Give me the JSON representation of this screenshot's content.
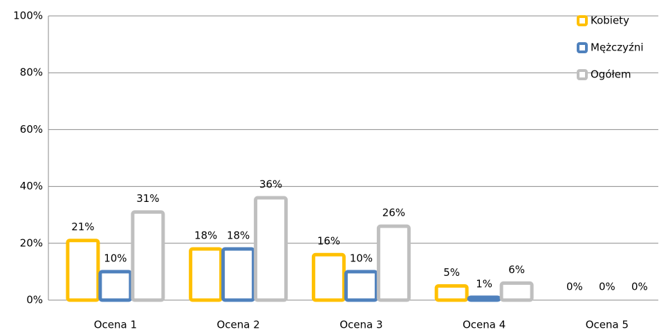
{
  "chart_data": {
    "type": "bar",
    "categories": [
      "Ocena 1",
      "Ocena 2",
      "Ocena 3",
      "Ocena 4",
      "Ocena 5"
    ],
    "series": [
      {
        "name": "Kobiety",
        "color": "#ffc000",
        "values": [
          21,
          18,
          16,
          5,
          0
        ],
        "value_labels": [
          "21%",
          "18%",
          "16%",
          "5%",
          "0%"
        ]
      },
      {
        "name": "Mężczyźni",
        "color": "#4f81bd",
        "values": [
          10,
          18,
          10,
          1,
          0
        ],
        "value_labels": [
          "10%",
          "18%",
          "10%",
          "1%",
          "0%"
        ]
      },
      {
        "name": "Ogółem",
        "color": "#bfbfbf",
        "values": [
          31,
          36,
          26,
          6,
          0
        ],
        "value_labels": [
          "31%",
          "36%",
          "26%",
          "6%",
          "0%"
        ]
      }
    ],
    "ylim": [
      0,
      100
    ],
    "yticks": [
      {
        "value": 0,
        "label": "0%"
      },
      {
        "value": 20,
        "label": "20%"
      },
      {
        "value": 40,
        "label": "40%"
      },
      {
        "value": 60,
        "label": "60%"
      },
      {
        "value": 80,
        "label": "80%"
      },
      {
        "value": 100,
        "label": "100%"
      }
    ],
    "grid": true,
    "legend": "top-right"
  }
}
